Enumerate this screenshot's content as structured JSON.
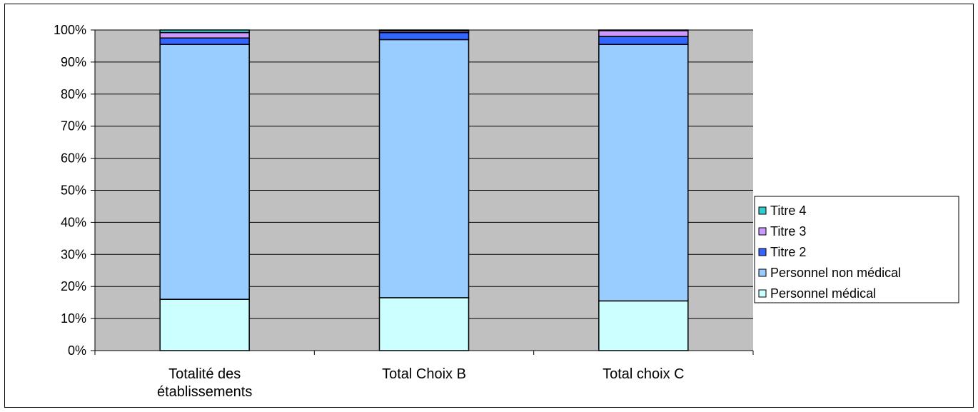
{
  "chart_data": {
    "type": "bar",
    "stacked": true,
    "percent": true,
    "categories": [
      [
        "Totalité des",
        "établissements"
      ],
      [
        "Total Choix B"
      ],
      [
        "Total choix C"
      ]
    ],
    "series": [
      {
        "name": "Personnel médical",
        "color": "#ccffff",
        "values": [
          16,
          16.5,
          15.5
        ]
      },
      {
        "name": "Personnel non médical",
        "color": "#99ccff",
        "values": [
          79.5,
          80.5,
          80
        ]
      },
      {
        "name": "Titre 2",
        "color": "#3366ff",
        "values": [
          2,
          2.2,
          2.5
        ]
      },
      {
        "name": "Titre 3",
        "color": "#cc99ff",
        "values": [
          1.7,
          0.5,
          1.8
        ]
      },
      {
        "name": "Titre 4",
        "color": "#33cccc",
        "values": [
          0.8,
          0.3,
          0.2
        ]
      }
    ],
    "yticks": [
      "0%",
      "10%",
      "20%",
      "30%",
      "40%",
      "50%",
      "60%",
      "70%",
      "80%",
      "90%",
      "100%"
    ],
    "ylim": [
      0,
      100
    ],
    "plot_background": "#c0c0c0",
    "grid": true,
    "legend_position": "right"
  }
}
